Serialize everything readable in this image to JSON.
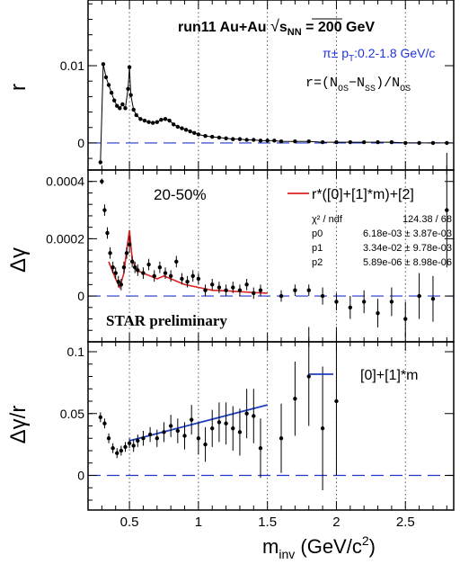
{
  "chart_data": [
    {
      "type": "scatter",
      "panel": "top",
      "ylabel": "r",
      "xlim": [
        0.2,
        2.85
      ],
      "ylim": [
        -0.0035,
        0.0185
      ],
      "yticks": [
        0,
        0.01
      ],
      "ytick_labels": [
        "0",
        "0.01"
      ],
      "title_part1": "run11 Au+Au ",
      "title_sqrt": "√",
      "title_s": "s",
      "title_nn": "NN",
      "title_part2": " = 200 GeV",
      "annotation_pid": "π± p",
      "annotation_pid_sub": "T",
      "annotation_pid_range": ":0.2-1.8 GeV/c",
      "formula_main": "r=(N",
      "formula_os": "OS",
      "formula_minus": "−N",
      "formula_ss": "SS",
      "formula_div": ")/N",
      "formula_os2": "OS",
      "series": [
        {
          "x": [
            0.29,
            0.31,
            0.33,
            0.35,
            0.37,
            0.39,
            0.41,
            0.43,
            0.45,
            0.47,
            0.49,
            0.5,
            0.51,
            0.53,
            0.55,
            0.58,
            0.61,
            0.64,
            0.67,
            0.7,
            0.73,
            0.76,
            0.79,
            0.82,
            0.85,
            0.88,
            0.91,
            0.94,
            0.97,
            1.0,
            1.05,
            1.1,
            1.15,
            1.2,
            1.25,
            1.3,
            1.35,
            1.4,
            1.45,
            1.5,
            1.55,
            1.6,
            1.7,
            1.8,
            1.9,
            2.0,
            2.1,
            2.2,
            2.3,
            2.4,
            2.5,
            2.6,
            2.7,
            2.8
          ],
          "y": [
            -0.0025,
            0.0102,
            0.0085,
            0.0075,
            0.0065,
            0.0055,
            0.0048,
            0.0045,
            0.005,
            0.0045,
            0.007,
            0.0098,
            0.0062,
            0.0043,
            0.0036,
            0.0031,
            0.0029,
            0.0027,
            0.0026,
            0.0027,
            0.003,
            0.0031,
            0.0029,
            0.0024,
            0.0021,
            0.0019,
            0.0017,
            0.0015,
            0.0013,
            0.0011,
            0.0009,
            0.0008,
            0.0007,
            0.0006,
            0.0005,
            0.0005,
            0.0004,
            0.0004,
            0.0003,
            0.0003,
            0.0003,
            0.0002,
            0.0002,
            0.0002,
            0.0001,
            0.0001,
            0.0001,
            0.0001,
            0.0001,
            0.0001,
            0.0,
            0.0,
            0.0,
            0.0
          ]
        }
      ]
    },
    {
      "type": "scatter",
      "panel": "middle",
      "ylabel": "Δγ",
      "xlim": [
        0.2,
        2.85
      ],
      "ylim": [
        -0.00016,
        0.00044
      ],
      "yticks": [
        0,
        0.0002,
        0.0004
      ],
      "ytick_labels": [
        "0",
        "0.0002",
        "0.0004"
      ],
      "centrality": "20-50%",
      "preliminary": "STAR preliminary",
      "legend_fit": "r*([0]+[1]*m)+[2]",
      "stats": [
        {
          "name": "χ² / ndf",
          "value": "124.38 / 68"
        },
        {
          "name": "p0",
          "value": "6.18e-03 ± 3.87e-03"
        },
        {
          "name": "p1",
          "value": "3.34e-02 ± 9.78e-03"
        },
        {
          "name": "p2",
          "value": "5.89e-06 ± 8.98e-06"
        }
      ],
      "fit_curve": {
        "x": [
          0.35,
          0.4,
          0.43,
          0.46,
          0.48,
          0.5,
          0.52,
          0.55,
          0.6,
          0.65,
          0.7,
          0.75,
          0.8,
          0.85,
          0.9,
          1.0,
          1.1,
          1.2,
          1.3,
          1.4,
          1.5
        ],
        "y": [
          0.00012,
          6e-05,
          3e-05,
          8e-05,
          0.00016,
          0.00023,
          0.00013,
          9e-05,
          8e-05,
          7e-05,
          6e-05,
          7e-05,
          6e-05,
          5e-05,
          4e-05,
          3e-05,
          2e-05,
          1.8e-05,
          1.5e-05,
          1.2e-05,
          1e-05
        ]
      },
      "series": [
        {
          "x": [
            0.3,
            0.32,
            0.34,
            0.36,
            0.38,
            0.4,
            0.42,
            0.44,
            0.46,
            0.48,
            0.5,
            0.52,
            0.54,
            0.56,
            0.6,
            0.64,
            0.68,
            0.72,
            0.76,
            0.8,
            0.84,
            0.88,
            0.92,
            0.96,
            1.0,
            1.05,
            1.1,
            1.15,
            1.2,
            1.25,
            1.3,
            1.35,
            1.4,
            1.45,
            1.6,
            1.7,
            1.8,
            1.9,
            2.0,
            2.1,
            2.2,
            2.3,
            2.4,
            2.5,
            2.6,
            2.7,
            2.8
          ],
          "y": [
            0.0004,
            0.0003,
            0.00022,
            0.00015,
            0.0001,
            8e-05,
            5e-05,
            4e-05,
            0.0001,
            0.00015,
            0.00018,
            0.00012,
            0.0001,
            9e-05,
            8e-05,
            0.00011,
            7e-05,
            0.0001,
            8e-05,
            7e-05,
            0.00012,
            6e-05,
            5e-05,
            7e-05,
            6e-05,
            2e-05,
            4e-05,
            3e-05,
            2e-05,
            3e-05,
            2e-05,
            4e-05,
            1e-05,
            2e-05,
            0.0,
            2e-05,
            2e-05,
            0.0,
            -2e-05,
            -4e-05,
            -2e-05,
            -6e-05,
            -2e-05,
            -8e-05,
            0.0,
            -1e-05,
            0.0003
          ],
          "err": [
            1e-05,
            2e-05,
            2e-05,
            2e-05,
            2e-05,
            2e-05,
            2e-05,
            2e-05,
            2e-05,
            2e-05,
            3e-05,
            2e-05,
            2e-05,
            2e-05,
            2e-05,
            2e-05,
            2e-05,
            2e-05,
            2e-05,
            2e-05,
            2e-05,
            2e-05,
            2e-05,
            2e-05,
            2e-05,
            2e-05,
            2e-05,
            2e-05,
            2e-05,
            2e-05,
            2e-05,
            2e-05,
            2e-05,
            2e-05,
            2e-05,
            2e-05,
            2e-05,
            3e-05,
            3e-05,
            4e-05,
            4e-05,
            5e-05,
            5e-05,
            6e-05,
            8e-05,
            8e-05,
            0.0002
          ]
        }
      ]
    },
    {
      "type": "scatter",
      "panel": "bottom",
      "ylabel": "Δγ/r",
      "xlabel": "m",
      "xlabel_sub": "inv",
      "xlabel_unit": " (GeV/c",
      "xlabel_sup": "2",
      "xlabel_close": ")",
      "xlim": [
        0.2,
        2.85
      ],
      "ylim": [
        -0.028,
        0.108
      ],
      "xticks": [
        0.5,
        1,
        1.5,
        2,
        2.5
      ],
      "xtick_labels": [
        "0.5",
        "1",
        "1.5",
        "2",
        "2.5"
      ],
      "yticks": [
        0,
        0.05,
        0.1
      ],
      "ytick_labels": [
        "0",
        "0.05",
        "0.1"
      ],
      "legend_fit": "[0]+[1]*m",
      "fit_line": {
        "x": [
          0.5,
          1.5
        ],
        "y": [
          0.028,
          0.057
        ]
      },
      "series": [
        {
          "x": [
            0.29,
            0.32,
            0.35,
            0.38,
            0.41,
            0.44,
            0.47,
            0.5,
            0.53,
            0.56,
            0.6,
            0.65,
            0.7,
            0.75,
            0.8,
            0.85,
            0.9,
            0.95,
            1.0,
            1.05,
            1.1,
            1.15,
            1.2,
            1.25,
            1.3,
            1.35,
            1.4,
            1.45,
            1.6,
            1.7,
            1.8,
            1.9,
            2.0
          ],
          "y": [
            0.047,
            0.042,
            0.03,
            0.022,
            0.018,
            0.02,
            0.023,
            0.026,
            0.024,
            0.028,
            0.03,
            0.033,
            0.03,
            0.035,
            0.04,
            0.036,
            0.032,
            0.045,
            0.03,
            0.025,
            0.038,
            0.043,
            0.042,
            0.038,
            0.035,
            0.05,
            0.048,
            0.022,
            0.03,
            0.062,
            0.08,
            0.038,
            0.06
          ],
          "err": [
            0.004,
            0.004,
            0.004,
            0.004,
            0.004,
            0.004,
            0.004,
            0.004,
            0.005,
            0.005,
            0.006,
            0.006,
            0.007,
            0.008,
            0.009,
            0.01,
            0.011,
            0.012,
            0.013,
            0.014,
            0.015,
            0.016,
            0.017,
            0.018,
            0.019,
            0.02,
            0.022,
            0.024,
            0.028,
            0.03,
            0.04,
            0.05,
            0.06
          ]
        }
      ]
    }
  ],
  "colors": {
    "axis": "#000000",
    "points": "#000000",
    "zero_line": "#2233cc",
    "fit_red": "#dd2222",
    "fit_blue": "#1f3fbf",
    "grid": "#555555",
    "pid_text": "#2233dd"
  }
}
